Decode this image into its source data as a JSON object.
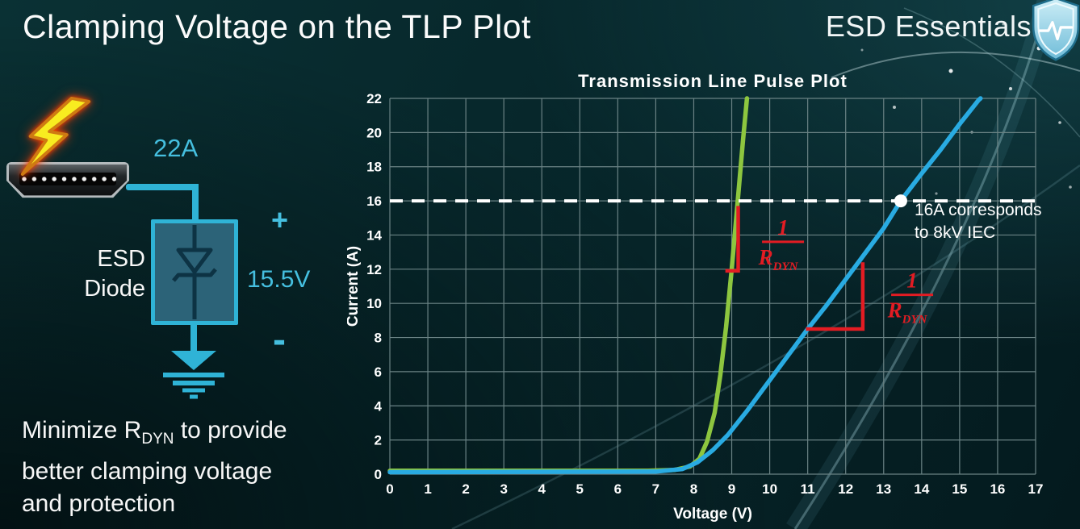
{
  "header": {
    "title": "Clamping Voltage on the TLP Plot",
    "brand": "ESD Essentials"
  },
  "circuit": {
    "surge_current_label": "22A",
    "device_name_line1": "ESD",
    "device_name_line2": "Diode",
    "plus_label": "+",
    "clamp_voltage_label": "15.5V",
    "minus_label": "-"
  },
  "takeaway": {
    "line1_prefix": "Minimize R",
    "line1_sub": "DYN",
    "line1_suffix": " to provide",
    "line2": "better clamping voltage",
    "line3": "and protection"
  },
  "chart_data": {
    "type": "line",
    "title": "Transmission Line Pulse Plot",
    "xlabel": "Voltage (V)",
    "ylabel": "Current (A)",
    "xlim": [
      0,
      17
    ],
    "ylim": [
      0,
      22
    ],
    "xticks": [
      0,
      1,
      2,
      3,
      4,
      5,
      6,
      7,
      8,
      9,
      10,
      11,
      12,
      13,
      14,
      15,
      16,
      17
    ],
    "yticks": [
      0,
      2,
      4,
      6,
      8,
      10,
      12,
      14,
      16,
      18,
      20,
      22
    ],
    "grid": true,
    "legend": "none",
    "colors": {
      "grid": "#6a8284",
      "axis_text": "#ffffff",
      "reference": "#ffffff",
      "annotation": "#e31c23"
    },
    "series": [
      {
        "name": "green-curve",
        "color": "#8dc63f",
        "points": [
          [
            0,
            0.2
          ],
          [
            6.8,
            0.2
          ],
          [
            7.5,
            0.25
          ],
          [
            7.9,
            0.45
          ],
          [
            8.15,
            0.9
          ],
          [
            8.35,
            1.9
          ],
          [
            8.55,
            3.6
          ],
          [
            8.7,
            5.8
          ],
          [
            8.85,
            8.6
          ],
          [
            9.0,
            12.0
          ],
          [
            9.15,
            15.8
          ],
          [
            9.3,
            19.6
          ],
          [
            9.4,
            22
          ]
        ]
      },
      {
        "name": "blue-curve",
        "color": "#29abe2",
        "points": [
          [
            0,
            0.12
          ],
          [
            7.0,
            0.15
          ],
          [
            7.7,
            0.3
          ],
          [
            8.1,
            0.7
          ],
          [
            8.5,
            1.4
          ],
          [
            8.9,
            2.3
          ],
          [
            9.4,
            3.7
          ],
          [
            10,
            5.5
          ],
          [
            10.5,
            7.0
          ],
          [
            11,
            8.5
          ],
          [
            11.5,
            9.9
          ],
          [
            12,
            11.4
          ],
          [
            12.5,
            12.9
          ],
          [
            13,
            14.4
          ],
          [
            13.45,
            16
          ],
          [
            14,
            17.6
          ],
          [
            14.5,
            19.0
          ],
          [
            15,
            20.5
          ],
          [
            15.5,
            21.9
          ],
          [
            15.55,
            22
          ]
        ]
      }
    ],
    "reference_line": {
      "y": 16,
      "style": "dashed",
      "marker": {
        "x": 13.45,
        "y": 16
      },
      "label_line1": "16A corresponds",
      "label_line2": "to 8kV IEC"
    },
    "slope_annotations": [
      {
        "series": "green-curve",
        "h_from": [
          8.88,
          11.9
        ],
        "corner": [
          9.17,
          11.9
        ],
        "v_to": [
          9.17,
          15.6
        ],
        "fraction_center": [
          10.35,
          13.6
        ],
        "numerator": "1",
        "denominator": "R",
        "denominator_sub": "DYN"
      },
      {
        "series": "blue-curve",
        "h_from": [
          11.0,
          8.5
        ],
        "corner": [
          12.45,
          8.5
        ],
        "v_to": [
          12.45,
          12.3
        ],
        "fraction_center": [
          13.75,
          10.5
        ],
        "numerator": "1",
        "denominator": "R",
        "denominator_sub": "DYN"
      }
    ]
  }
}
